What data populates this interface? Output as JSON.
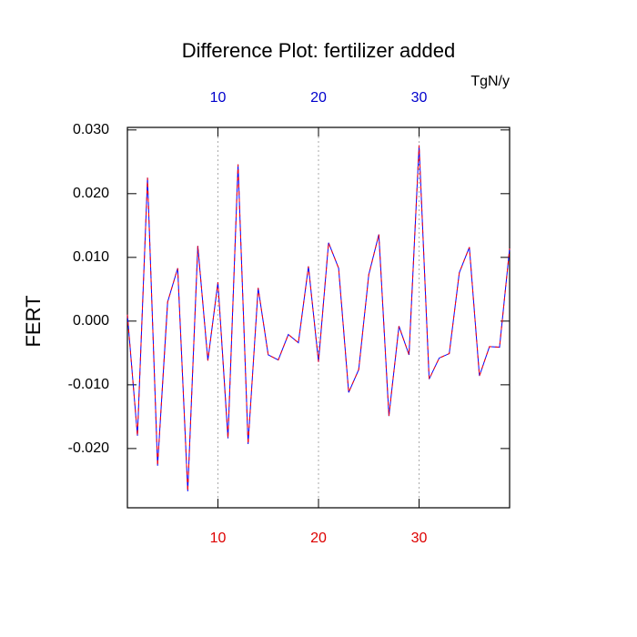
{
  "chart_data": {
    "type": "line",
    "title": "Difference Plot: fertilizer added",
    "y_label": "FERT",
    "top_annotation": "TgN/y",
    "x": [
      1,
      2,
      3,
      4,
      5,
      6,
      7,
      8,
      9,
      10,
      11,
      12,
      13,
      14,
      15,
      16,
      17,
      18,
      19,
      20,
      21,
      22,
      23,
      24,
      25,
      26,
      27,
      28,
      29,
      30,
      31,
      32,
      33,
      34,
      35,
      36,
      37,
      38,
      39
    ],
    "values": [
      0.001,
      -0.018,
      0.0225,
      -0.0227,
      0.003,
      0.0083,
      -0.0267,
      0.0118,
      -0.0062,
      0.0061,
      -0.0184,
      0.0246,
      -0.0193,
      0.0052,
      -0.0053,
      -0.0061,
      -0.0021,
      -0.0034,
      0.0086,
      -0.0064,
      0.0123,
      0.0083,
      -0.0112,
      -0.0076,
      0.0073,
      0.0136,
      -0.0149,
      -0.0008,
      -0.0053,
      0.0276,
      -0.0091,
      -0.0058,
      -0.0051,
      0.0076,
      0.0116,
      -0.0086,
      -0.004,
      -0.0041,
      0.0114
    ],
    "color": "#0000ff",
    "dash_color": "#ff0000",
    "xlim": [
      1,
      39
    ],
    "xticks": [
      10,
      20,
      30
    ],
    "top_tick_color": "#0000cc",
    "bottom_tick_color": "#dd0000",
    "ylim": [
      -0.0293,
      0.0304
    ],
    "yticks": [
      {
        "value": -0.02,
        "label": "-0.020"
      },
      {
        "value": -0.01,
        "label": "-0.010"
      },
      {
        "value": 0,
        "label": "0.000"
      },
      {
        "value": 0.01,
        "label": "0.010"
      },
      {
        "value": 0.02,
        "label": "0.020"
      },
      {
        "value": 0.03,
        "label": "0.030"
      }
    ],
    "grid": true
  }
}
